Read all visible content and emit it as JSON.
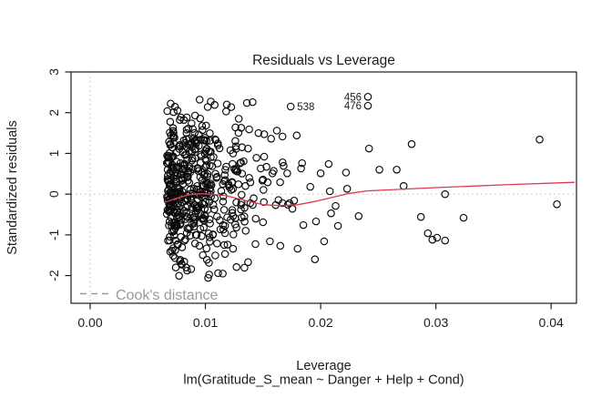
{
  "colors": {
    "background": "#ffffff",
    "foreground": "#1c1c1c",
    "point_stroke": "#0a0a0a",
    "smooth_line": "#dc3a52",
    "reference_dotted": "#c9c9c9",
    "legend_gray": "#9a9a9a"
  },
  "chart_data": {
    "type": "scatter",
    "title": "Residuals vs Leverage",
    "xlabel": "Leverage",
    "ylabel": "Standardized residuals",
    "caption": "lm(Gratitude_S_mean ~ Danger + Help + Cond)",
    "xlim": [
      -0.00166,
      0.0422
    ],
    "ylim": [
      -2.68,
      3.0
    ],
    "grid": false,
    "x_ticks": {
      "values": [
        0,
        0.01,
        0.02,
        0.03,
        0.04
      ],
      "labels": [
        "0.00",
        "0.01",
        "0.02",
        "0.03",
        "0.04"
      ]
    },
    "y_ticks": {
      "values": [
        -2,
        -1,
        0,
        1,
        2,
        3
      ],
      "labels": [
        "-2",
        "-1",
        "0",
        "1",
        "2",
        "3"
      ]
    },
    "reference_lines": {
      "horizontal_y": 0,
      "vertical_x": 0,
      "style": "dotted"
    },
    "legend": {
      "label": "Cook's distance",
      "position": "bottomleft",
      "line_style": "dashed"
    },
    "labeled_points": [
      {
        "label": "456",
        "x": 0.0241,
        "y": 2.39,
        "label_side": "left"
      },
      {
        "label": "476",
        "x": 0.0241,
        "y": 2.17,
        "label_side": "left"
      },
      {
        "label": "538",
        "x": 0.0174,
        "y": 2.15,
        "label_side": "right"
      }
    ],
    "points": [
      [
        0.0095,
        2.32
      ],
      [
        0.0102,
        2.14
      ],
      [
        0.0108,
        2.19
      ],
      [
        0.0118,
        2.03
      ],
      [
        0.0129,
        1.85
      ],
      [
        0.0136,
        2.24
      ],
      [
        0.0141,
        2.26
      ],
      [
        0.0131,
        1.63
      ],
      [
        0.0138,
        1.59
      ],
      [
        0.0146,
        1.5
      ],
      [
        0.0151,
        1.47
      ],
      [
        0.0157,
        1.36
      ],
      [
        0.0162,
        1.56
      ],
      [
        0.0137,
        1.12
      ],
      [
        0.0151,
        0.92
      ],
      [
        0.0167,
        0.78
      ],
      [
        0.0153,
        0.67
      ],
      [
        0.0171,
        0.51
      ],
      [
        0.0148,
        0.63
      ],
      [
        0.015,
        0.36
      ],
      [
        0.0154,
        0.29
      ],
      [
        0.0139,
        0.29
      ],
      [
        0.0138,
        0.4
      ],
      [
        0.0126,
        0.58
      ],
      [
        0.0139,
        -0.22
      ],
      [
        0.0161,
        -0.27
      ],
      [
        0.0167,
        -0.22
      ],
      [
        0.0173,
        -0.22
      ],
      [
        0.0177,
        -0.16
      ],
      [
        0.015,
        -0.69
      ],
      [
        0.0156,
        -1.16
      ],
      [
        0.0165,
        -1.27
      ],
      [
        0.0135,
        -0.9
      ],
      [
        0.0124,
        -1.34
      ],
      [
        0.0127,
        -1.79
      ],
      [
        0.0137,
        -1.67
      ],
      [
        0.0117,
        -0.78
      ],
      [
        0.0117,
        -1.47
      ],
      [
        0.0111,
        -1.94
      ],
      [
        0.018,
        -1.34
      ],
      [
        0.0185,
        -0.76
      ],
      [
        0.0195,
        -1.6
      ],
      [
        0.0196,
        -0.67
      ],
      [
        0.0183,
        0.63
      ],
      [
        0.0191,
        0.18
      ],
      [
        0.02,
        0.51
      ],
      [
        0.0203,
        -1.16
      ],
      [
        0.0207,
        0.74
      ],
      [
        0.0208,
        0.07
      ],
      [
        0.0209,
        -0.47
      ],
      [
        0.0213,
        -0.29
      ],
      [
        0.0215,
        -0.78
      ],
      [
        0.0222,
        0.53
      ],
      [
        0.0223,
        0.13
      ],
      [
        0.0233,
        -0.54
      ],
      [
        0.0242,
        1.12
      ],
      [
        0.0251,
        0.6
      ],
      [
        0.0266,
        0.6
      ],
      [
        0.0272,
        0.2
      ],
      [
        0.0279,
        1.23
      ],
      [
        0.0287,
        -0.56
      ],
      [
        0.0293,
        -0.96
      ],
      [
        0.0297,
        -1.12
      ],
      [
        0.0301,
        -1.07
      ],
      [
        0.0308,
        0.0
      ],
      [
        0.0308,
        -1.14
      ],
      [
        0.0324,
        -0.58
      ],
      [
        0.039,
        1.34
      ],
      [
        0.0405,
        -0.25
      ]
    ],
    "dense_cluster": {
      "description": "Unresolvably dense vertical band of ~500 overlapping open circles; sharp left edge at leverage 0.00665, fading density toward 0.018; standardized residuals span -2.06 to 2.28, bell-shaped around ~0.08",
      "seed": 42,
      "bands": [
        {
          "n": 380,
          "xmin": 0.00665,
          "xmax": 0.0105,
          "xpow": 1.3,
          "yamp": 2.35,
          "yshift": 0.08,
          "yclip": [
            -2.06,
            2.28
          ]
        },
        {
          "n": 85,
          "xmin": 0.0105,
          "xmax": 0.0135,
          "xpow": 1.0,
          "yamp": 2.25,
          "yshift": 0.1,
          "yclip": [
            -1.95,
            2.2
          ]
        },
        {
          "n": 18,
          "xmin": 0.0135,
          "xmax": 0.0185,
          "xpow": 1.0,
          "yamp": 1.9,
          "yshift": 0.0,
          "yclip": [
            -1.8,
            1.9
          ]
        }
      ]
    },
    "smooth_line": {
      "color": "#dc3a52",
      "points": [
        [
          0.0066,
          -0.19
        ],
        [
          0.0075,
          -0.1
        ],
        [
          0.0085,
          -0.02
        ],
        [
          0.0095,
          0.01
        ],
        [
          0.0105,
          0.0
        ],
        [
          0.0118,
          -0.04
        ],
        [
          0.0135,
          -0.16
        ],
        [
          0.015,
          -0.26
        ],
        [
          0.0165,
          -0.28
        ],
        [
          0.018,
          -0.26
        ],
        [
          0.0195,
          -0.18
        ],
        [
          0.021,
          -0.08
        ],
        [
          0.0225,
          0.02
        ],
        [
          0.024,
          0.08
        ],
        [
          0.03,
          0.16
        ],
        [
          0.036,
          0.23
        ],
        [
          0.042,
          0.29
        ]
      ]
    }
  }
}
